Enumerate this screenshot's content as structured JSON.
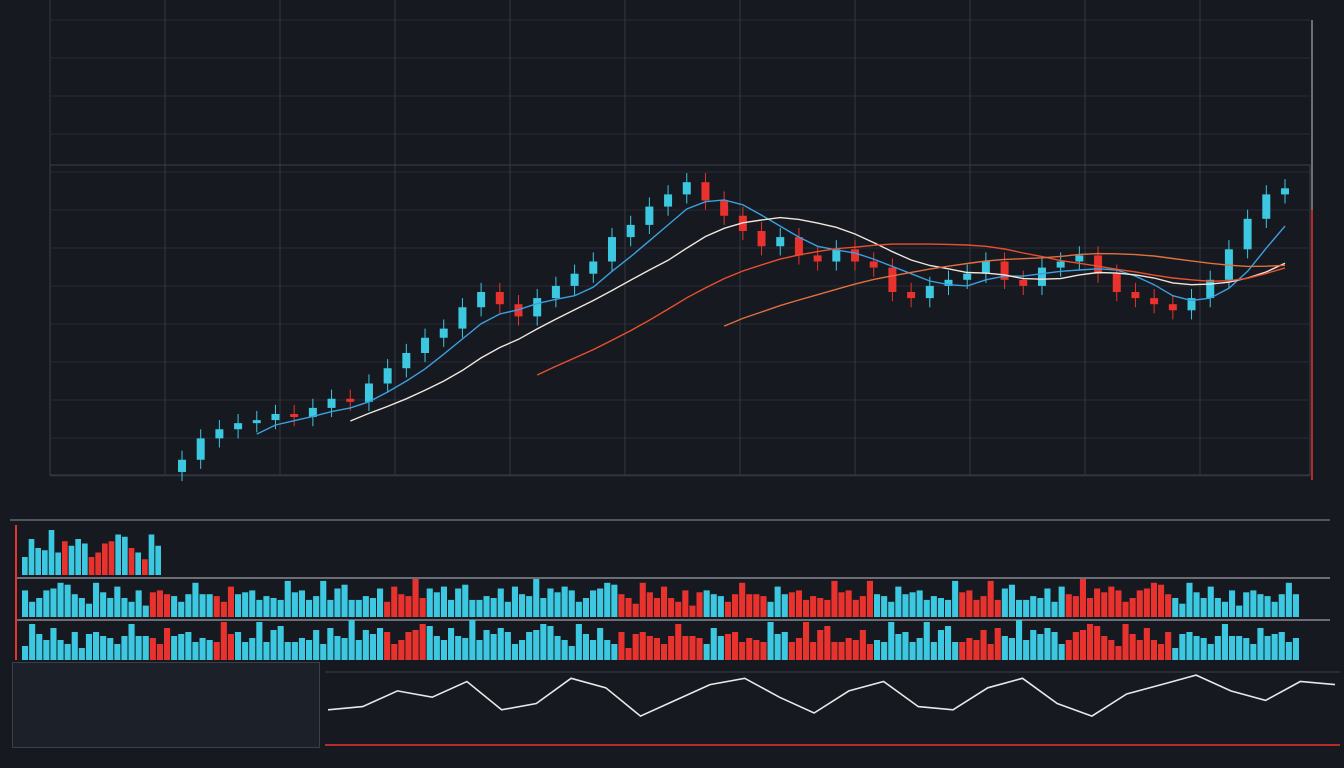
{
  "title": "",
  "colors": {
    "background": "#16191f",
    "grid": "#3a3f4a",
    "up": "#3cc8e0",
    "down": "#e8322e",
    "ma_fast": "#3aa0e0",
    "ma_mid": "#f0e6dc",
    "ma_slow": "#e8502e",
    "ma_slowest": "#e07040",
    "oscillator": "#e8e8e8"
  },
  "chart_data": {
    "type": "candlestick",
    "title": "",
    "xlabel": "",
    "ylabel": "",
    "grid": true,
    "ylim": [
      0,
      100
    ],
    "close": [
      5,
      12,
      15,
      17,
      18,
      20,
      19,
      22,
      25,
      24,
      30,
      35,
      40,
      45,
      48,
      55,
      60,
      56,
      52,
      58,
      62,
      66,
      70,
      78,
      82,
      88,
      92,
      96,
      90,
      85,
      80,
      75,
      78,
      72,
      70,
      74,
      70,
      68,
      60,
      58,
      62,
      64,
      66,
      70,
      64,
      62,
      68,
      70,
      72,
      66,
      60,
      58,
      56,
      54,
      58,
      64,
      74,
      84,
      92,
      94
    ],
    "moving_averages": [
      5,
      10,
      20,
      30
    ],
    "volume": [
      40,
      55,
      30,
      70,
      45,
      60,
      35,
      80,
      50,
      65,
      40,
      75,
      55,
      90,
      60,
      45,
      70,
      50,
      85,
      40,
      65,
      55,
      95,
      60,
      70,
      45,
      80,
      50,
      100,
      65,
      55,
      75,
      45,
      60,
      80,
      50,
      70,
      40,
      90,
      55,
      65,
      50,
      75,
      45,
      60,
      85,
      50,
      70,
      40,
      65,
      55,
      90,
      60,
      75,
      45,
      70,
      80,
      95,
      60,
      50
    ],
    "oscillator": [
      40,
      45,
      70,
      60,
      85,
      40,
      50,
      90,
      75,
      30,
      55,
      80,
      90,
      60,
      35,
      70,
      85,
      45,
      40,
      75,
      90,
      50,
      30,
      65,
      80,
      95,
      70,
      55,
      85,
      80
    ],
    "legend": "none"
  }
}
